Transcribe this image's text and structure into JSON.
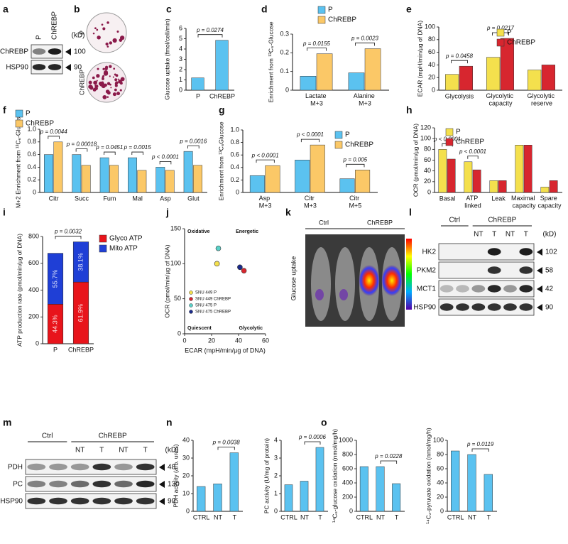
{
  "panel_labels": [
    "a",
    "b",
    "c",
    "d",
    "e",
    "f",
    "g",
    "h",
    "i",
    "j",
    "k",
    "l",
    "m",
    "n",
    "o"
  ],
  "blots": {
    "a": {
      "lanes": [
        "P",
        "ChREBP"
      ],
      "kd_label": "(kD)",
      "rows": [
        {
          "name": "ChREBP",
          "kd": 100
        },
        {
          "name": "HSP90",
          "kd": 90
        }
      ]
    },
    "l": {
      "groups": [
        "Ctrl",
        "ChREBP"
      ],
      "lanes": [
        "NT",
        "T",
        "NT",
        "T"
      ],
      "kd_label": "(kD)",
      "rows": [
        {
          "name": "HK2",
          "kd": 102
        },
        {
          "name": "PKM2",
          "kd": 58
        },
        {
          "name": "MCT1",
          "kd": 42
        },
        {
          "name": "HSP90",
          "kd": 90
        }
      ]
    },
    "m": {
      "groups": [
        "Ctrl",
        "ChREBP"
      ],
      "lanes": [
        "NT",
        "T",
        "NT",
        "T"
      ],
      "kd_label": "(kD)",
      "rows": [
        {
          "name": "PDH",
          "kd": 48
        },
        {
          "name": "PC",
          "kd": 130
        },
        {
          "name": "HSP90",
          "kd": 90
        }
      ]
    }
  },
  "colonies": {
    "labels": [
      "P",
      "ChREBP"
    ]
  },
  "imaging": {
    "groups": [
      "Ctrl",
      "ChREBP"
    ],
    "label": "Glucose uptake"
  },
  "chart_data": [
    {
      "type": "bar",
      "categories": [
        "P",
        "ChREBP"
      ],
      "values": [
        1.2,
        4.85
      ],
      "color": "#5bc2f0",
      "ylabel": "Glucose uptake (fmol/cell/min)",
      "ylim": [
        0,
        6
      ],
      "yticks": [
        0,
        1,
        2,
        3,
        4,
        5,
        6
      ],
      "annotations": [
        "p = 0.0274"
      ]
    },
    {
      "type": "bar",
      "categories": [
        "Lactate M+3",
        "Alanine M+3"
      ],
      "series": [
        {
          "name": "P",
          "color": "#5bc2f0",
          "values": [
            0.075,
            0.093
          ]
        },
        {
          "name": "ChREBP",
          "color": "#fbc867",
          "values": [
            0.195,
            0.222
          ]
        }
      ],
      "ylabel": "Enrichment from ¹³C₆-Glucose",
      "ylim": [
        0,
        0.3
      ],
      "yticks": [
        0,
        0.1,
        0.2,
        0.3
      ],
      "annotations": [
        "p = 0.0155",
        "p = 0.0023"
      ]
    },
    {
      "type": "bar",
      "categories": [
        "Glycolysis",
        "Glycolytic capacity",
        "Glycolytic reserve"
      ],
      "series": [
        {
          "name": "P",
          "color": "#f4e04d",
          "values": [
            25,
            52,
            32
          ]
        },
        {
          "name": "ChREBP",
          "color": "#d7262f",
          "values": [
            38,
            82,
            40
          ]
        }
      ],
      "ylabel": "ECAR (mpH/min/µg of DNA)",
      "ylim": [
        0,
        100
      ],
      "yticks": [
        0,
        20,
        40,
        60,
        80,
        100
      ],
      "annotations": [
        "p = 0.0458",
        "p = 0.0217"
      ]
    },
    {
      "type": "bar",
      "categories": [
        "Citr",
        "Succ",
        "Fum",
        "Mal",
        "Asp",
        "Glut"
      ],
      "series": [
        {
          "name": "P",
          "color": "#5bc2f0",
          "values": [
            0.6,
            0.6,
            0.55,
            0.55,
            0.4,
            0.65
          ]
        },
        {
          "name": "ChREBP",
          "color": "#fbc867",
          "values": [
            0.8,
            0.43,
            0.43,
            0.35,
            0.35,
            0.43
          ]
        }
      ],
      "ylabel": "M+2 Enrichment from ¹³C₆-Glucose",
      "ylim": [
        0,
        1
      ],
      "yticks": [
        0,
        0.2,
        0.4,
        0.6,
        0.8,
        {
          "value": 1,
          "label": "1.0"
        }
      ],
      "annotations": [
        "p = 0.0044",
        "p = 0.00018",
        "p = 0.0451",
        "p = 0.0015",
        "p < 0.0001",
        "p = 0.0016"
      ]
    },
    {
      "type": "bar",
      "categories": [
        "Asp M+3",
        "Citr M+3",
        "Citr M+5"
      ],
      "series": [
        {
          "name": "P",
          "color": "#5bc2f0",
          "values": [
            0.27,
            0.52,
            0.22
          ]
        },
        {
          "name": "ChREBP",
          "color": "#fbc867",
          "values": [
            0.43,
            0.76,
            0.36
          ]
        }
      ],
      "ylabel": "Enrichment from ¹³C₆Glucose",
      "ylim": [
        0,
        1
      ],
      "yticks": [
        0,
        0.2,
        0.4,
        0.6,
        0.8,
        {
          "value": 1,
          "label": "1.0"
        }
      ],
      "annotations": [
        "p < 0.0001",
        "p < 0.0001",
        "p = 0.005"
      ]
    },
    {
      "type": "bar",
      "categories": [
        "Basal",
        "ATP linked",
        "Leak",
        "Maximal capacity",
        "Spare capacity"
      ],
      "series": [
        {
          "name": "P",
          "color": "#f4e04d",
          "values": [
            80,
            57,
            22,
            88,
            10
          ]
        },
        {
          "name": "ChREBP",
          "color": "#d7262f",
          "values": [
            62,
            42,
            22,
            88,
            22
          ]
        }
      ],
      "ylabel": "OCR (pmol/min/µg of DNA)",
      "ylim": [
        0,
        120
      ],
      "yticks": [
        0,
        20,
        40,
        60,
        80,
        100,
        120
      ],
      "annotations": [
        "p < 0.0001",
        "p < 0.0001"
      ]
    },
    {
      "type": "stacked_bar",
      "categories": [
        "P",
        "ChREBP"
      ],
      "series": [
        {
          "name": "Glyco ATP",
          "color": "#e8141b",
          "values": [
            295,
            460
          ],
          "percent_labels": [
            "44.3%",
            "61.9%"
          ]
        },
        {
          "name": "Mito ATP",
          "color": "#1f3fd6",
          "values": [
            380,
            300
          ],
          "percent_labels": [
            "55.7%",
            "38.1%"
          ]
        }
      ],
      "ylabel": "ATP production rate (pmol/min/µg of DNA)",
      "ylim": [
        0,
        800
      ],
      "yticks": [
        0,
        200,
        400,
        600,
        800
      ],
      "annotations": [
        "p = 0.0032"
      ]
    },
    {
      "type": "scatter",
      "xlabel": "ECAR (mpH/min/µg of DNA)",
      "ylabel": "OCR (pmol/min/µg of DNA)",
      "xlim": [
        0,
        60
      ],
      "xticks": [
        0,
        20,
        40,
        60
      ],
      "ylim": [
        0,
        150
      ],
      "yticks": [
        0,
        50,
        100,
        150
      ],
      "quadrant_labels": [
        "Oxidative",
        "Energetic",
        "Quiescent",
        "Glycolytic"
      ],
      "series": [
        {
          "name": "SNU 449 P",
          "color": "#f4e04d",
          "x": [
            24
          ],
          "values": [
            100
          ]
        },
        {
          "name": "SNU 449 ChREBP",
          "color": "#d7262f",
          "x": [
            44
          ],
          "values": [
            90
          ]
        },
        {
          "name": "SNU 475 P",
          "color": "#5ad1c8",
          "x": [
            25
          ],
          "values": [
            122
          ]
        },
        {
          "name": "SNU 475 ChREBP",
          "color": "#1a2a8c",
          "x": [
            41
          ],
          "values": [
            95
          ]
        }
      ]
    },
    {
      "type": "bar",
      "categories": [
        "CTRL",
        "NT",
        "T"
      ],
      "values": [
        14,
        15.5,
        33
      ],
      "color": "#5bc2f0",
      "ylabel": "PDH activity (arb. units)",
      "ylim": [
        0,
        40
      ],
      "yticks": [
        0,
        10,
        20,
        30,
        40
      ],
      "annotations": [
        "p = 0.0038"
      ]
    },
    {
      "type": "bar",
      "categories": [
        "CTRL",
        "NT",
        "T"
      ],
      "values": [
        1.5,
        1.7,
        3.6
      ],
      "color": "#5bc2f0",
      "ylabel": "PC activity (U/mg of protein)",
      "ylim": [
        0,
        4
      ],
      "yticks": [
        0,
        1,
        2,
        3,
        4
      ],
      "annotations": [
        "p = 0.0006"
      ]
    },
    {
      "type": "bar",
      "categories": [
        "CTRL",
        "NT",
        "T"
      ],
      "values": [
        630,
        630,
        390
      ],
      "color": "#5bc2f0",
      "ylabel": "¹⁴C₆-glucose oxidation (nmol/mg/h)",
      "ylim": [
        0,
        1000
      ],
      "yticks": [
        0,
        200,
        400,
        600,
        800,
        1000
      ],
      "annotations": [
        "p = 0.0228"
      ]
    },
    {
      "type": "bar",
      "categories": [
        "CTRL",
        "NT",
        "T"
      ],
      "values": [
        85,
        80,
        52
      ],
      "color": "#5bc2f0",
      "ylabel": "¹⁴C₂-pyruvate oxidation (nmol/mg/h)",
      "ylim": [
        0,
        100
      ],
      "yticks": [
        0,
        20,
        40,
        60,
        80,
        100
      ],
      "annotations": [
        "p = 0.0119"
      ]
    }
  ]
}
